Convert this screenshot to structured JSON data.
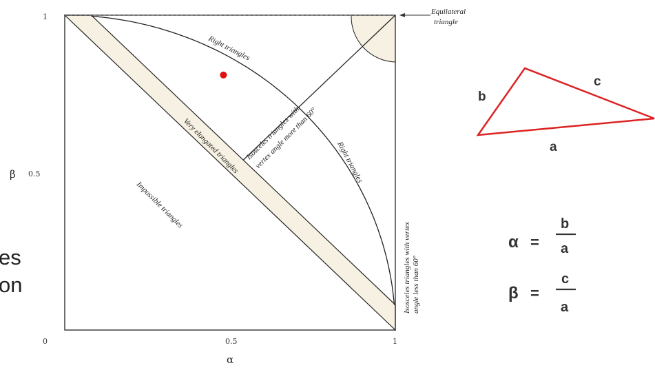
{
  "axes": {
    "x_symbol": "α",
    "y_symbol": "β",
    "x_ticks": [
      "0.5",
      "1"
    ],
    "y_ticks": [
      "1",
      "0.5"
    ],
    "origin": "0"
  },
  "annotations": {
    "equilateral": [
      "Equilateral",
      "triangle"
    ],
    "right_top": "Right triangles",
    "right_side": "Right triangles",
    "isosceles_large_angle": [
      "Isosceles triangles with",
      "vertex angle more than 60°"
    ],
    "very_elongated": "Very elongated triangles",
    "impossible": "Impossible triangles",
    "isosceles_small_angle": [
      "Isosceles triangles with vertex",
      "angle less than 60°"
    ]
  },
  "example_point": {
    "alpha": 0.48,
    "beta": 0.81,
    "color": "#e01010"
  },
  "triangle": {
    "side_labels": {
      "a": "a",
      "b": "b",
      "c": "c"
    },
    "color": "#dd2222"
  },
  "formulas": {
    "alpha": {
      "lhs": "α",
      "eq": "=",
      "num": "b",
      "den": "a"
    },
    "beta": {
      "lhs": "β",
      "eq": "=",
      "num": "c",
      "den": "a"
    }
  },
  "cut_off_text": [
    "es",
    "on"
  ],
  "colors": {
    "band_fill": "#f6f1e2",
    "line": "#222222"
  }
}
